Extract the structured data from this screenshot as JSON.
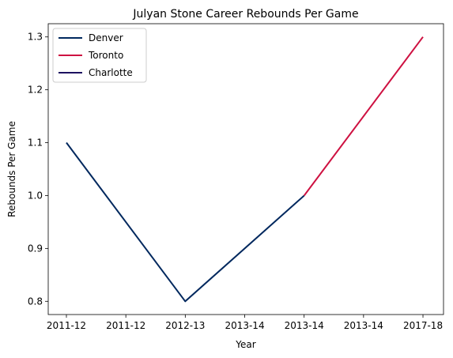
{
  "chart_data": {
    "type": "line",
    "title": "Julyan Stone Career Rebounds Per Game",
    "xlabel": "Year",
    "ylabel": "Rebounds Per Game",
    "x_tick_labels": [
      "2011-12",
      "2011-12",
      "2012-13",
      "2013-14",
      "2013-14",
      "2013-14",
      "2017-18"
    ],
    "y_ticks": [
      0.8,
      0.9,
      1.0,
      1.1,
      1.2,
      1.3
    ],
    "ylim": [
      0.775,
      1.325
    ],
    "grid": false,
    "legend_position": "top-left",
    "series": [
      {
        "name": "Denver",
        "color": "#00285e",
        "x": [
          0,
          2,
          4
        ],
        "y": [
          1.1,
          0.8,
          1.0
        ]
      },
      {
        "name": "Toronto",
        "color": "#ce1141",
        "x": [
          4,
          6
        ],
        "y": [
          1.0,
          1.3
        ]
      },
      {
        "name": "Charlotte",
        "color": "#1d1160",
        "x": [],
        "y": []
      }
    ]
  }
}
